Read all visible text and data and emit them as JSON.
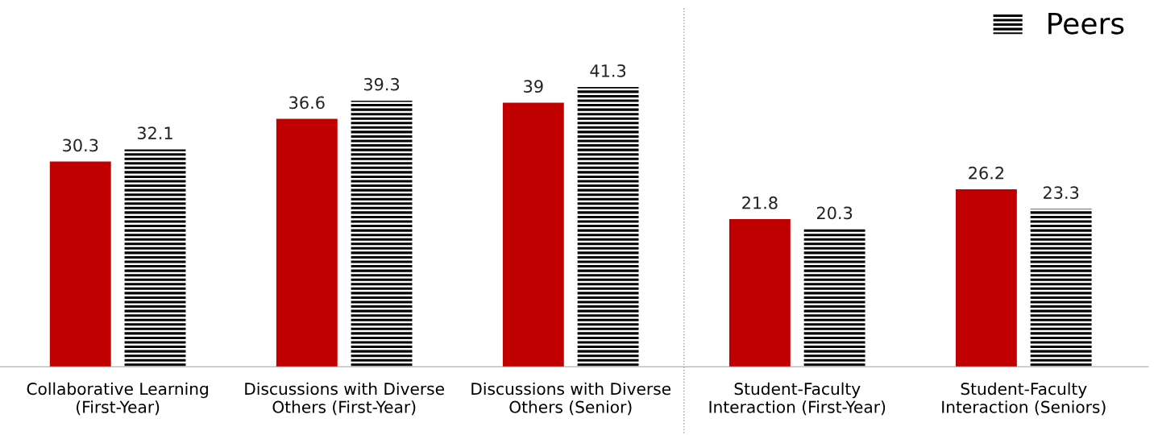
{
  "chart_data": {
    "type": "bar",
    "categories": [
      "Collaborative Learning\n(First-Year)",
      "Discussions with Diverse\nOthers (First-Year)",
      "Discussions with Diverse\nOthers (Senior)",
      "Student-Faculty\nInteraction (First-Year)",
      "Student-Faculty\nInteraction (Seniors)"
    ],
    "series": [
      {
        "color": "#c00000",
        "values": [
          30.3,
          36.6,
          39,
          21.8,
          26.2
        ]
      },
      {
        "name": "Peers",
        "color": "#000000",
        "values": [
          32.1,
          39.3,
          41.3,
          20.3,
          23.3
        ]
      }
    ],
    "data_labels": true,
    "legend": "top right",
    "grid": false
  }
}
